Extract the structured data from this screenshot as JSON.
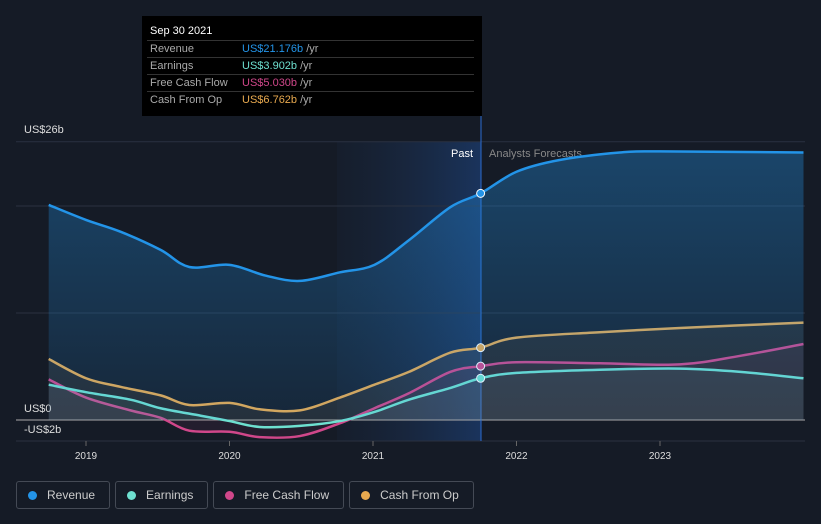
{
  "tooltip": {
    "date": "Sep 30 2021",
    "rows": [
      {
        "label": "Revenue",
        "value": "US$21.176b",
        "unit": " /yr",
        "color": "#2394e8"
      },
      {
        "label": "Earnings",
        "value": "US$3.902b",
        "unit": " /yr",
        "color": "#6ee0d0"
      },
      {
        "label": "Free Cash Flow",
        "value": "US$5.030b",
        "unit": " /yr",
        "color": "#d0478a"
      },
      {
        "label": "Cash From Op",
        "value": "US$6.762b",
        "unit": " /yr",
        "color": "#e8a94f"
      }
    ]
  },
  "chart_data": {
    "type": "line",
    "ylim": [
      -2,
      26
    ],
    "ytick_labels": {
      "top": "US$26b",
      "zero": "US$0",
      "bottom": "-US$2b"
    },
    "xlim": [
      2018.55,
      2024.0
    ],
    "x_ticks": [
      2019,
      2020,
      2021,
      2022,
      2023
    ],
    "past_label": "Past",
    "forecast_label": "Analysts Forecasts",
    "divider_x": 2021.75,
    "series": [
      {
        "name": "Revenue",
        "color": "#2394e8",
        "points": [
          [
            2018.74,
            20.1
          ],
          [
            2019.0,
            18.7
          ],
          [
            2019.24,
            17.6
          ],
          [
            2019.52,
            15.9
          ],
          [
            2019.72,
            14.3
          ],
          [
            2020.0,
            14.5
          ],
          [
            2020.25,
            13.5
          ],
          [
            2020.49,
            13.0
          ],
          [
            2020.77,
            13.8
          ],
          [
            2021.01,
            14.5
          ],
          [
            2021.25,
            16.8
          ],
          [
            2021.54,
            19.9
          ],
          [
            2021.75,
            21.18
          ],
          [
            2022.0,
            23.2
          ],
          [
            2022.3,
            24.3
          ],
          [
            2022.72,
            25.0
          ],
          [
            2023.0,
            25.1
          ],
          [
            2024.0,
            25.0
          ]
        ]
      },
      {
        "name": "Earnings",
        "color": "#6ee0d0",
        "points": [
          [
            2018.74,
            3.3
          ],
          [
            2019.0,
            2.6
          ],
          [
            2019.31,
            1.9
          ],
          [
            2019.52,
            1.1
          ],
          [
            2019.8,
            0.4
          ],
          [
            2020.0,
            -0.1
          ],
          [
            2020.21,
            -0.65
          ],
          [
            2020.49,
            -0.55
          ],
          [
            2020.77,
            -0.1
          ],
          [
            2021.01,
            0.75
          ],
          [
            2021.25,
            1.9
          ],
          [
            2021.54,
            3.0
          ],
          [
            2021.75,
            3.9
          ],
          [
            2022.0,
            4.4
          ],
          [
            2022.58,
            4.7
          ],
          [
            2023.14,
            4.8
          ],
          [
            2023.56,
            4.5
          ],
          [
            2024.0,
            3.9
          ]
        ]
      },
      {
        "name": "Free Cash Flow",
        "color": "#d0478a",
        "points": [
          [
            2018.74,
            3.8
          ],
          [
            2019.0,
            2.1
          ],
          [
            2019.31,
            0.9
          ],
          [
            2019.52,
            0.2
          ],
          [
            2019.72,
            -1.0
          ],
          [
            2020.0,
            -1.1
          ],
          [
            2020.21,
            -1.6
          ],
          [
            2020.49,
            -1.5
          ],
          [
            2020.77,
            -0.3
          ],
          [
            2021.01,
            1.1
          ],
          [
            2021.25,
            2.5
          ],
          [
            2021.54,
            4.5
          ],
          [
            2021.75,
            5.03
          ],
          [
            2022.0,
            5.4
          ],
          [
            2022.58,
            5.3
          ],
          [
            2023.14,
            5.2
          ],
          [
            2023.56,
            6.0
          ],
          [
            2024.0,
            7.1
          ]
        ]
      },
      {
        "name": "Cash From Op",
        "color": "#e8a94f",
        "points": [
          [
            2018.74,
            5.7
          ],
          [
            2019.0,
            3.9
          ],
          [
            2019.24,
            3.1
          ],
          [
            2019.52,
            2.3
          ],
          [
            2019.72,
            1.4
          ],
          [
            2020.0,
            1.6
          ],
          [
            2020.21,
            1.0
          ],
          [
            2020.49,
            0.9
          ],
          [
            2020.77,
            2.1
          ],
          [
            2021.01,
            3.3
          ],
          [
            2021.25,
            4.5
          ],
          [
            2021.54,
            6.3
          ],
          [
            2021.75,
            6.76
          ],
          [
            2022.0,
            7.7
          ],
          [
            2022.58,
            8.2
          ],
          [
            2023.14,
            8.6
          ],
          [
            2024.0,
            9.1
          ]
        ]
      }
    ]
  }
}
